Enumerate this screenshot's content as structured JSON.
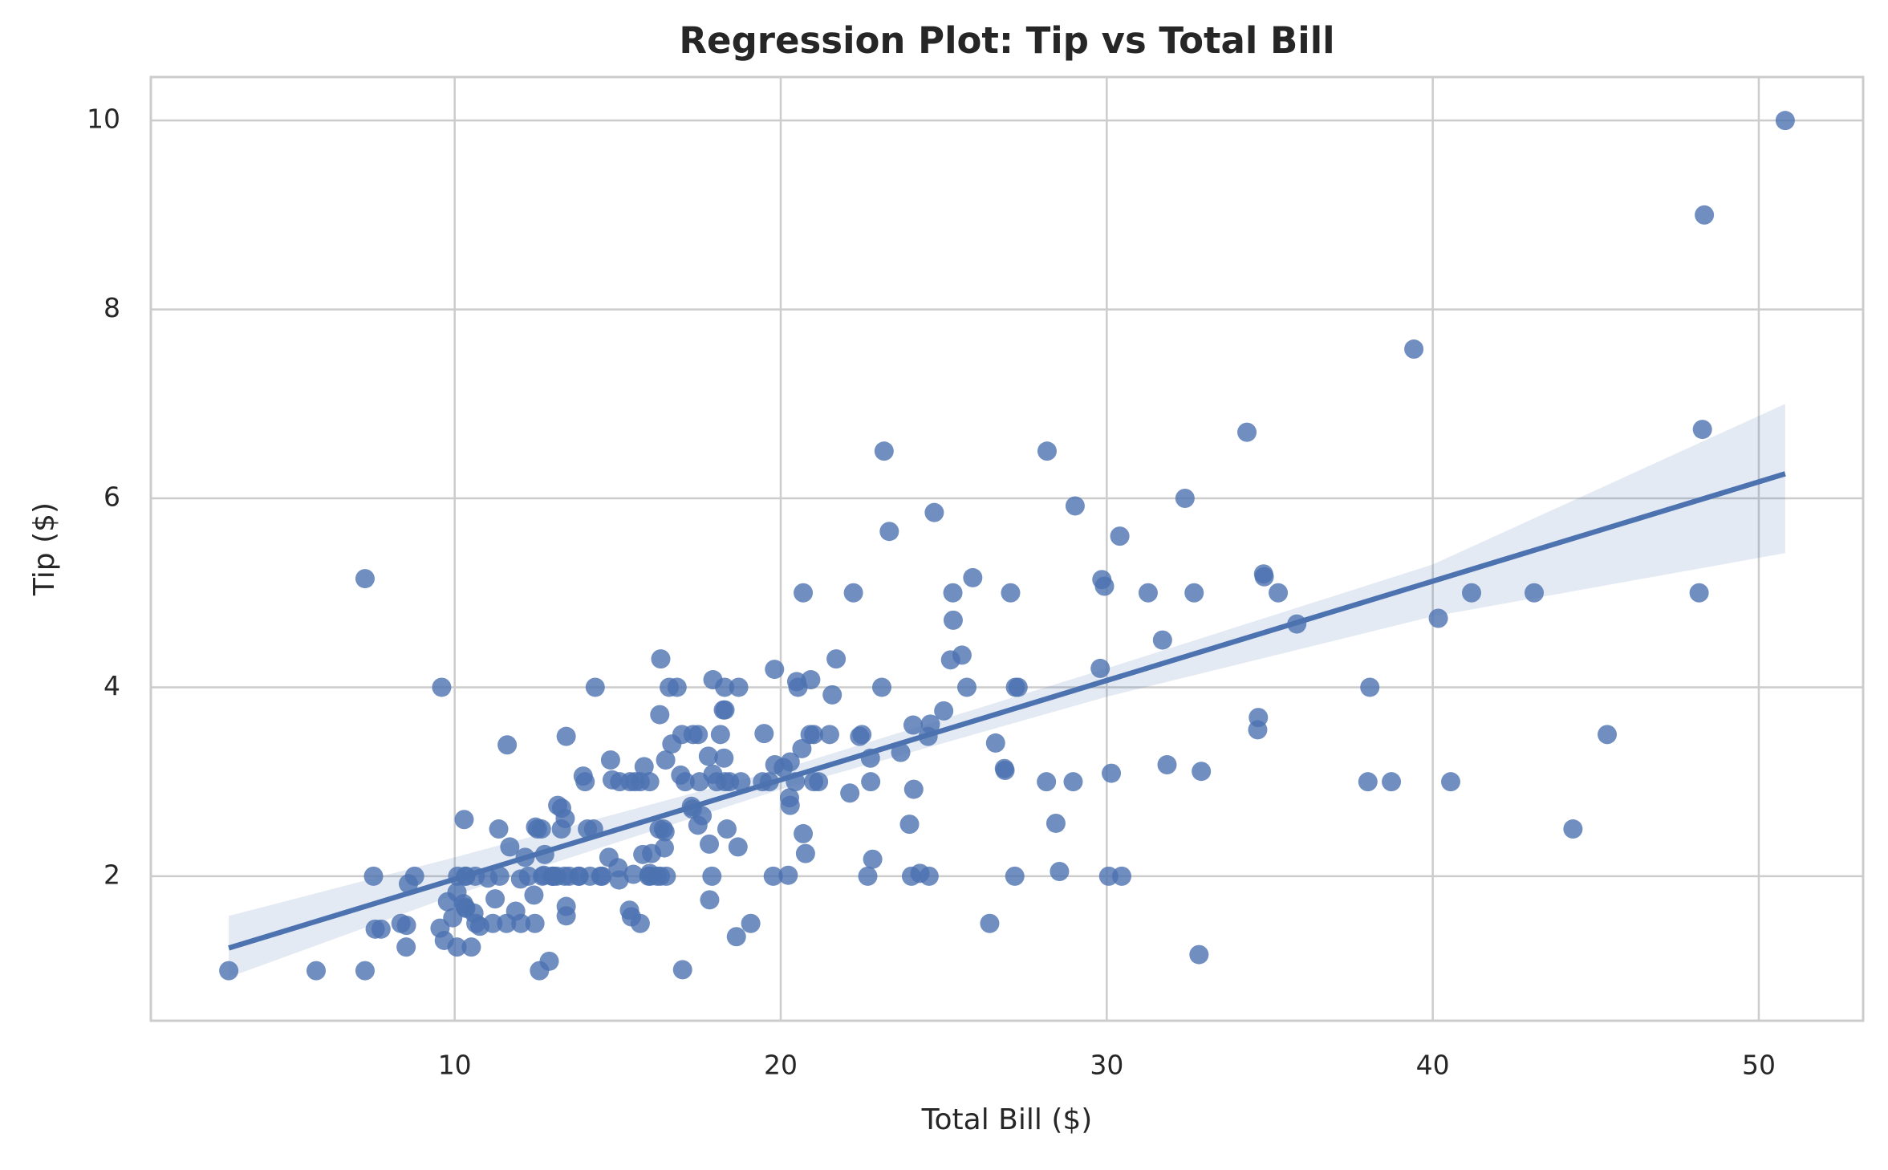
{
  "chart_data": {
    "type": "scatter",
    "title": "Regression Plot: Tip vs Total Bill",
    "x_label": "Total Bill ($)",
    "y_label": "Tip ($)",
    "color": "#4c72b0",
    "grid": true,
    "xlim": [
      0.68,
      53.2
    ],
    "ylim": [
      0.47,
      10.46
    ],
    "xticks": [
      10,
      20,
      30,
      40,
      50
    ],
    "yticks": [
      2,
      4,
      6,
      8,
      10
    ],
    "x": [
      16.99,
      10.34,
      21.01,
      23.68,
      24.59,
      25.29,
      8.77,
      26.88,
      15.04,
      14.78,
      10.27,
      35.26,
      15.42,
      18.43,
      14.83,
      21.58,
      10.33,
      16.29,
      16.97,
      20.65,
      17.92,
      20.29,
      15.77,
      39.42,
      19.82,
      17.81,
      13.37,
      12.69,
      21.7,
      19.65,
      9.55,
      18.35,
      15.06,
      20.69,
      17.78,
      24.06,
      16.31,
      16.93,
      18.69,
      31.27,
      16.04,
      17.46,
      13.94,
      9.68,
      30.4,
      18.29,
      22.23,
      32.4,
      28.55,
      18.04,
      12.54,
      10.29,
      34.81,
      9.94,
      25.56,
      19.49,
      38.01,
      26.41,
      11.24,
      48.27,
      20.29,
      13.81,
      11.02,
      18.29,
      17.59,
      20.08,
      16.45,
      3.07,
      20.23,
      15.01,
      12.02,
      17.07,
      26.86,
      25.28,
      14.73,
      10.51,
      17.92,
      27.2,
      22.76,
      17.29,
      19.44,
      16.66,
      10.07,
      32.68,
      15.98,
      34.83,
      13.03,
      18.28,
      24.71,
      21.16,
      28.97,
      22.49,
      5.75,
      16.32,
      22.75,
      40.17,
      27.28,
      12.03,
      21.01,
      12.46,
      11.35,
      15.38,
      44.3,
      22.42,
      20.92,
      15.36,
      20.49,
      25.21,
      18.24,
      14.31,
      14.0,
      7.25,
      38.07,
      23.95,
      25.71,
      17.31,
      29.93,
      10.65,
      12.43,
      24.08,
      11.69,
      13.42,
      14.26,
      15.95,
      12.48,
      29.8,
      8.52,
      14.52,
      11.38,
      22.82,
      19.08,
      20.27,
      11.17,
      12.26,
      18.26,
      8.51,
      10.33,
      14.15,
      16.0,
      13.16,
      17.47,
      34.3,
      41.19,
      27.05,
      16.43,
      8.35,
      18.64,
      11.87,
      9.78,
      7.51,
      14.07,
      13.13,
      17.26,
      24.55,
      19.77,
      29.85,
      48.17,
      25.0,
      13.39,
      16.49,
      21.5,
      12.66,
      16.21,
      13.81,
      17.51,
      24.52,
      20.76,
      31.71,
      10.59,
      10.63,
      50.81,
      15.81,
      7.25,
      31.85,
      16.82,
      32.9,
      17.89,
      14.48,
      9.6,
      34.63,
      34.65,
      23.33,
      45.35,
      23.17,
      40.55,
      20.69,
      20.9,
      30.46,
      18.15,
      23.1,
      15.69,
      19.81,
      28.44,
      15.48,
      16.58,
      7.56,
      10.34,
      43.11,
      13.0,
      13.51,
      18.71,
      12.74,
      13.0,
      16.4,
      20.53,
      16.47,
      26.59,
      38.73,
      24.27,
      12.76,
      30.06,
      25.89,
      48.33,
      13.27,
      28.17,
      12.9,
      28.15,
      11.59,
      7.74,
      30.14,
      12.16,
      13.42,
      8.58,
      15.98,
      13.42,
      16.27,
      10.09,
      20.45,
      13.28,
      22.12,
      24.01,
      15.69,
      11.61,
      10.77,
      15.53,
      10.07,
      12.6,
      32.83,
      35.83,
      29.03,
      27.18,
      22.67,
      17.82,
      18.78
    ],
    "values": [
      1.01,
      1.66,
      3.5,
      3.31,
      3.61,
      4.71,
      2.0,
      3.12,
      1.96,
      3.23,
      1.71,
      5.0,
      1.57,
      3.0,
      3.02,
      3.92,
      1.67,
      3.71,
      3.5,
      3.35,
      4.08,
      2.75,
      2.23,
      7.58,
      3.18,
      2.34,
      2.0,
      2.0,
      4.3,
      3.0,
      1.45,
      2.5,
      3.0,
      2.45,
      3.27,
      3.6,
      2.0,
      3.07,
      2.31,
      5.0,
      2.24,
      2.54,
      3.06,
      1.32,
      5.6,
      3.0,
      5.0,
      6.0,
      2.05,
      3.0,
      2.5,
      2.6,
      5.2,
      1.56,
      4.34,
      3.51,
      3.0,
      1.5,
      1.76,
      6.73,
      3.21,
      2.0,
      1.98,
      3.76,
      2.64,
      3.15,
      2.47,
      1.0,
      2.01,
      2.09,
      1.97,
      3.0,
      3.14,
      5.0,
      2.2,
      1.25,
      3.08,
      4.0,
      3.0,
      2.71,
      3.0,
      3.4,
      1.83,
      5.0,
      2.03,
      5.17,
      2.0,
      4.0,
      5.85,
      3.0,
      3.0,
      3.5,
      1.0,
      4.3,
      3.25,
      4.73,
      4.0,
      1.5,
      3.0,
      1.5,
      2.5,
      3.0,
      2.5,
      3.48,
      4.08,
      1.64,
      4.06,
      4.29,
      3.76,
      4.0,
      3.0,
      1.0,
      4.0,
      2.55,
      4.0,
      3.5,
      5.07,
      1.5,
      1.8,
      2.92,
      2.31,
      1.68,
      2.5,
      2.0,
      2.52,
      4.2,
      1.48,
      2.0,
      2.0,
      2.18,
      1.5,
      2.83,
      1.5,
      2.0,
      3.25,
      1.25,
      2.0,
      2.0,
      2.0,
      2.75,
      3.5,
      6.7,
      5.0,
      5.0,
      2.3,
      1.5,
      1.36,
      1.63,
      1.73,
      2.0,
      2.5,
      2.0,
      2.74,
      2.0,
      2.0,
      5.14,
      5.0,
      3.75,
      2.61,
      2.0,
      3.5,
      2.5,
      2.0,
      2.0,
      3.0,
      3.48,
      2.24,
      4.5,
      1.61,
      2.0,
      10.0,
      3.16,
      5.15,
      3.18,
      4.0,
      3.11,
      2.0,
      2.0,
      4.0,
      3.55,
      3.68,
      5.65,
      3.5,
      6.5,
      3.0,
      5.0,
      3.5,
      2.0,
      3.5,
      4.0,
      1.5,
      4.19,
      2.56,
      2.02,
      4.0,
      1.44,
      2.0,
      5.0,
      2.0,
      2.0,
      4.0,
      2.01,
      2.0,
      2.5,
      4.0,
      3.23,
      3.41,
      3.0,
      2.03,
      2.23,
      2.0,
      5.16,
      9.0,
      2.5,
      6.5,
      1.1,
      3.0,
      1.5,
      1.44,
      3.09,
      2.2,
      3.48,
      1.92,
      3.0,
      1.58,
      2.5,
      2.0,
      3.0,
      2.72,
      2.88,
      2.0,
      3.0,
      3.39,
      1.47,
      3.0,
      1.25,
      1.0,
      1.17,
      4.67,
      5.92,
      2.0,
      2.0,
      1.75,
      3.0
    ],
    "regression": {
      "x": [
        3.07,
        50.81
      ],
      "y": [
        1.24,
        6.26
      ]
    },
    "band": {
      "x": [
        3.07,
        10,
        20,
        30,
        40,
        50.81
      ],
      "lower": [
        0.93,
        1.8,
        2.92,
        3.9,
        4.75,
        5.42
      ],
      "upper": [
        1.58,
        2.2,
        3.13,
        4.2,
        5.3,
        7.0
      ]
    }
  }
}
